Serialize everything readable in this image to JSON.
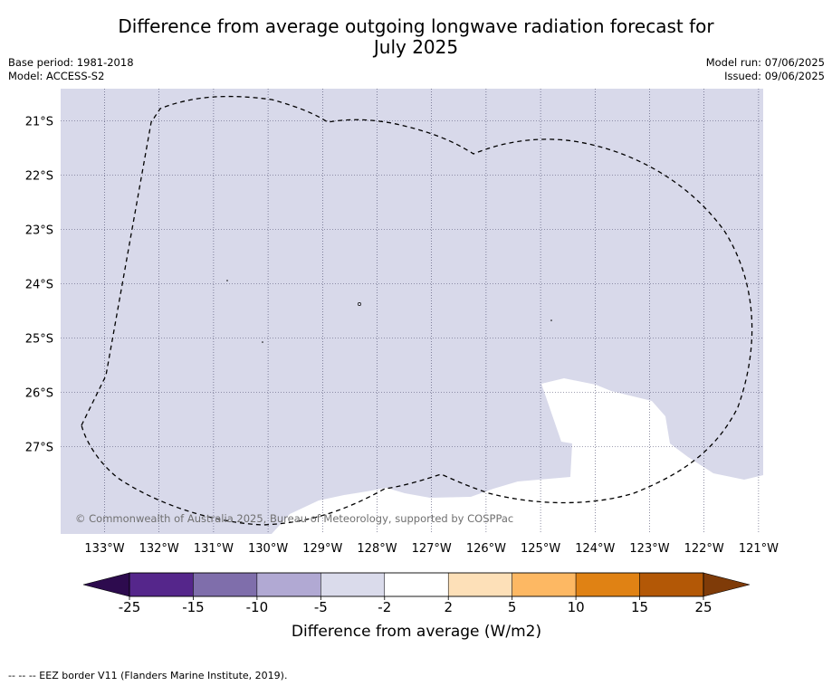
{
  "title_line1": "Difference from average outgoing longwave radiation forecast for",
  "title_line2": "July 2025",
  "base_period": "Base period: 1981-2018",
  "model": "Model: ACCESS-S2",
  "model_run": "Model run: 07/06/2025",
  "issued": "Issued: 09/06/2025",
  "copyright": "© Commonwealth of Australia 2025, Bureau of Meteorology, supported by COSPPac",
  "lat_labels": [
    "21°S",
    "22°S",
    "23°S",
    "24°S",
    "25°S",
    "26°S",
    "27°S"
  ],
  "lon_labels": [
    "133°W",
    "132°W",
    "131°W",
    "130°W",
    "129°W",
    "128°W",
    "127°W",
    "126°W",
    "125°W",
    "124°W",
    "123°W",
    "122°W",
    "121°W"
  ],
  "colorbar": {
    "label": "Difference from average (W/m2)",
    "ticks": [
      "-25",
      "-15",
      "-10",
      "-5",
      "-2",
      "2",
      "5",
      "10",
      "15",
      "25"
    ],
    "colors": [
      "#55268b",
      "#7f6eab",
      "#b1a9d3",
      "#dadbeb",
      "#ffffff",
      "#fde0b8",
      "#fdb863",
      "#e08214",
      "#b35806"
    ],
    "under_color": "#2d0b4e",
    "over_color": "#7f3b08"
  },
  "map_fill_color": "#d8d9ea",
  "footnote": "-- -- -- EEZ border V11 (Flanders Marine Institute, 2019)."
}
